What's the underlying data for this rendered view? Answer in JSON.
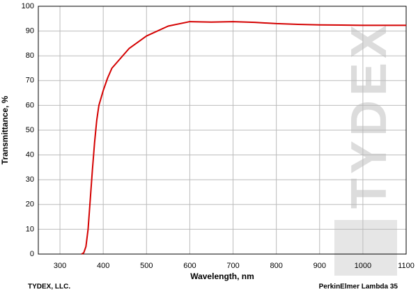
{
  "chart_data": {
    "type": "line",
    "x_label": "Wavelength, nm",
    "y_label": "Transmittance, %",
    "watermark": "TYDEX",
    "footer_left": "TYDEX, LLC.",
    "footer_right": "PerkinElmer Lambda 35",
    "x": [
      350,
      355,
      360,
      365,
      370,
      375,
      380,
      385,
      390,
      400,
      410,
      420,
      440,
      460,
      500,
      550,
      600,
      650,
      700,
      750,
      800,
      850,
      900,
      950,
      1000,
      1050,
      1100
    ],
    "series": [
      {
        "name": "Transmittance",
        "color": "#d40000",
        "values": [
          0,
          0.5,
          3,
          10,
          22,
          34,
          45,
          54,
          60,
          66,
          71,
          75,
          79,
          83,
          88,
          92,
          93.8,
          93.6,
          93.8,
          93.5,
          93,
          92.7,
          92.5,
          92.4,
          92.3,
          92.3,
          92.3
        ]
      }
    ],
    "xlim": [
      250,
      1100
    ],
    "xticks": [
      300,
      400,
      500,
      600,
      700,
      800,
      900,
      1000,
      1100
    ],
    "ylim": [
      0,
      100
    ],
    "yticks": [
      0,
      10,
      20,
      30,
      40,
      50,
      60,
      70,
      80,
      90,
      100
    ],
    "grid": true
  }
}
